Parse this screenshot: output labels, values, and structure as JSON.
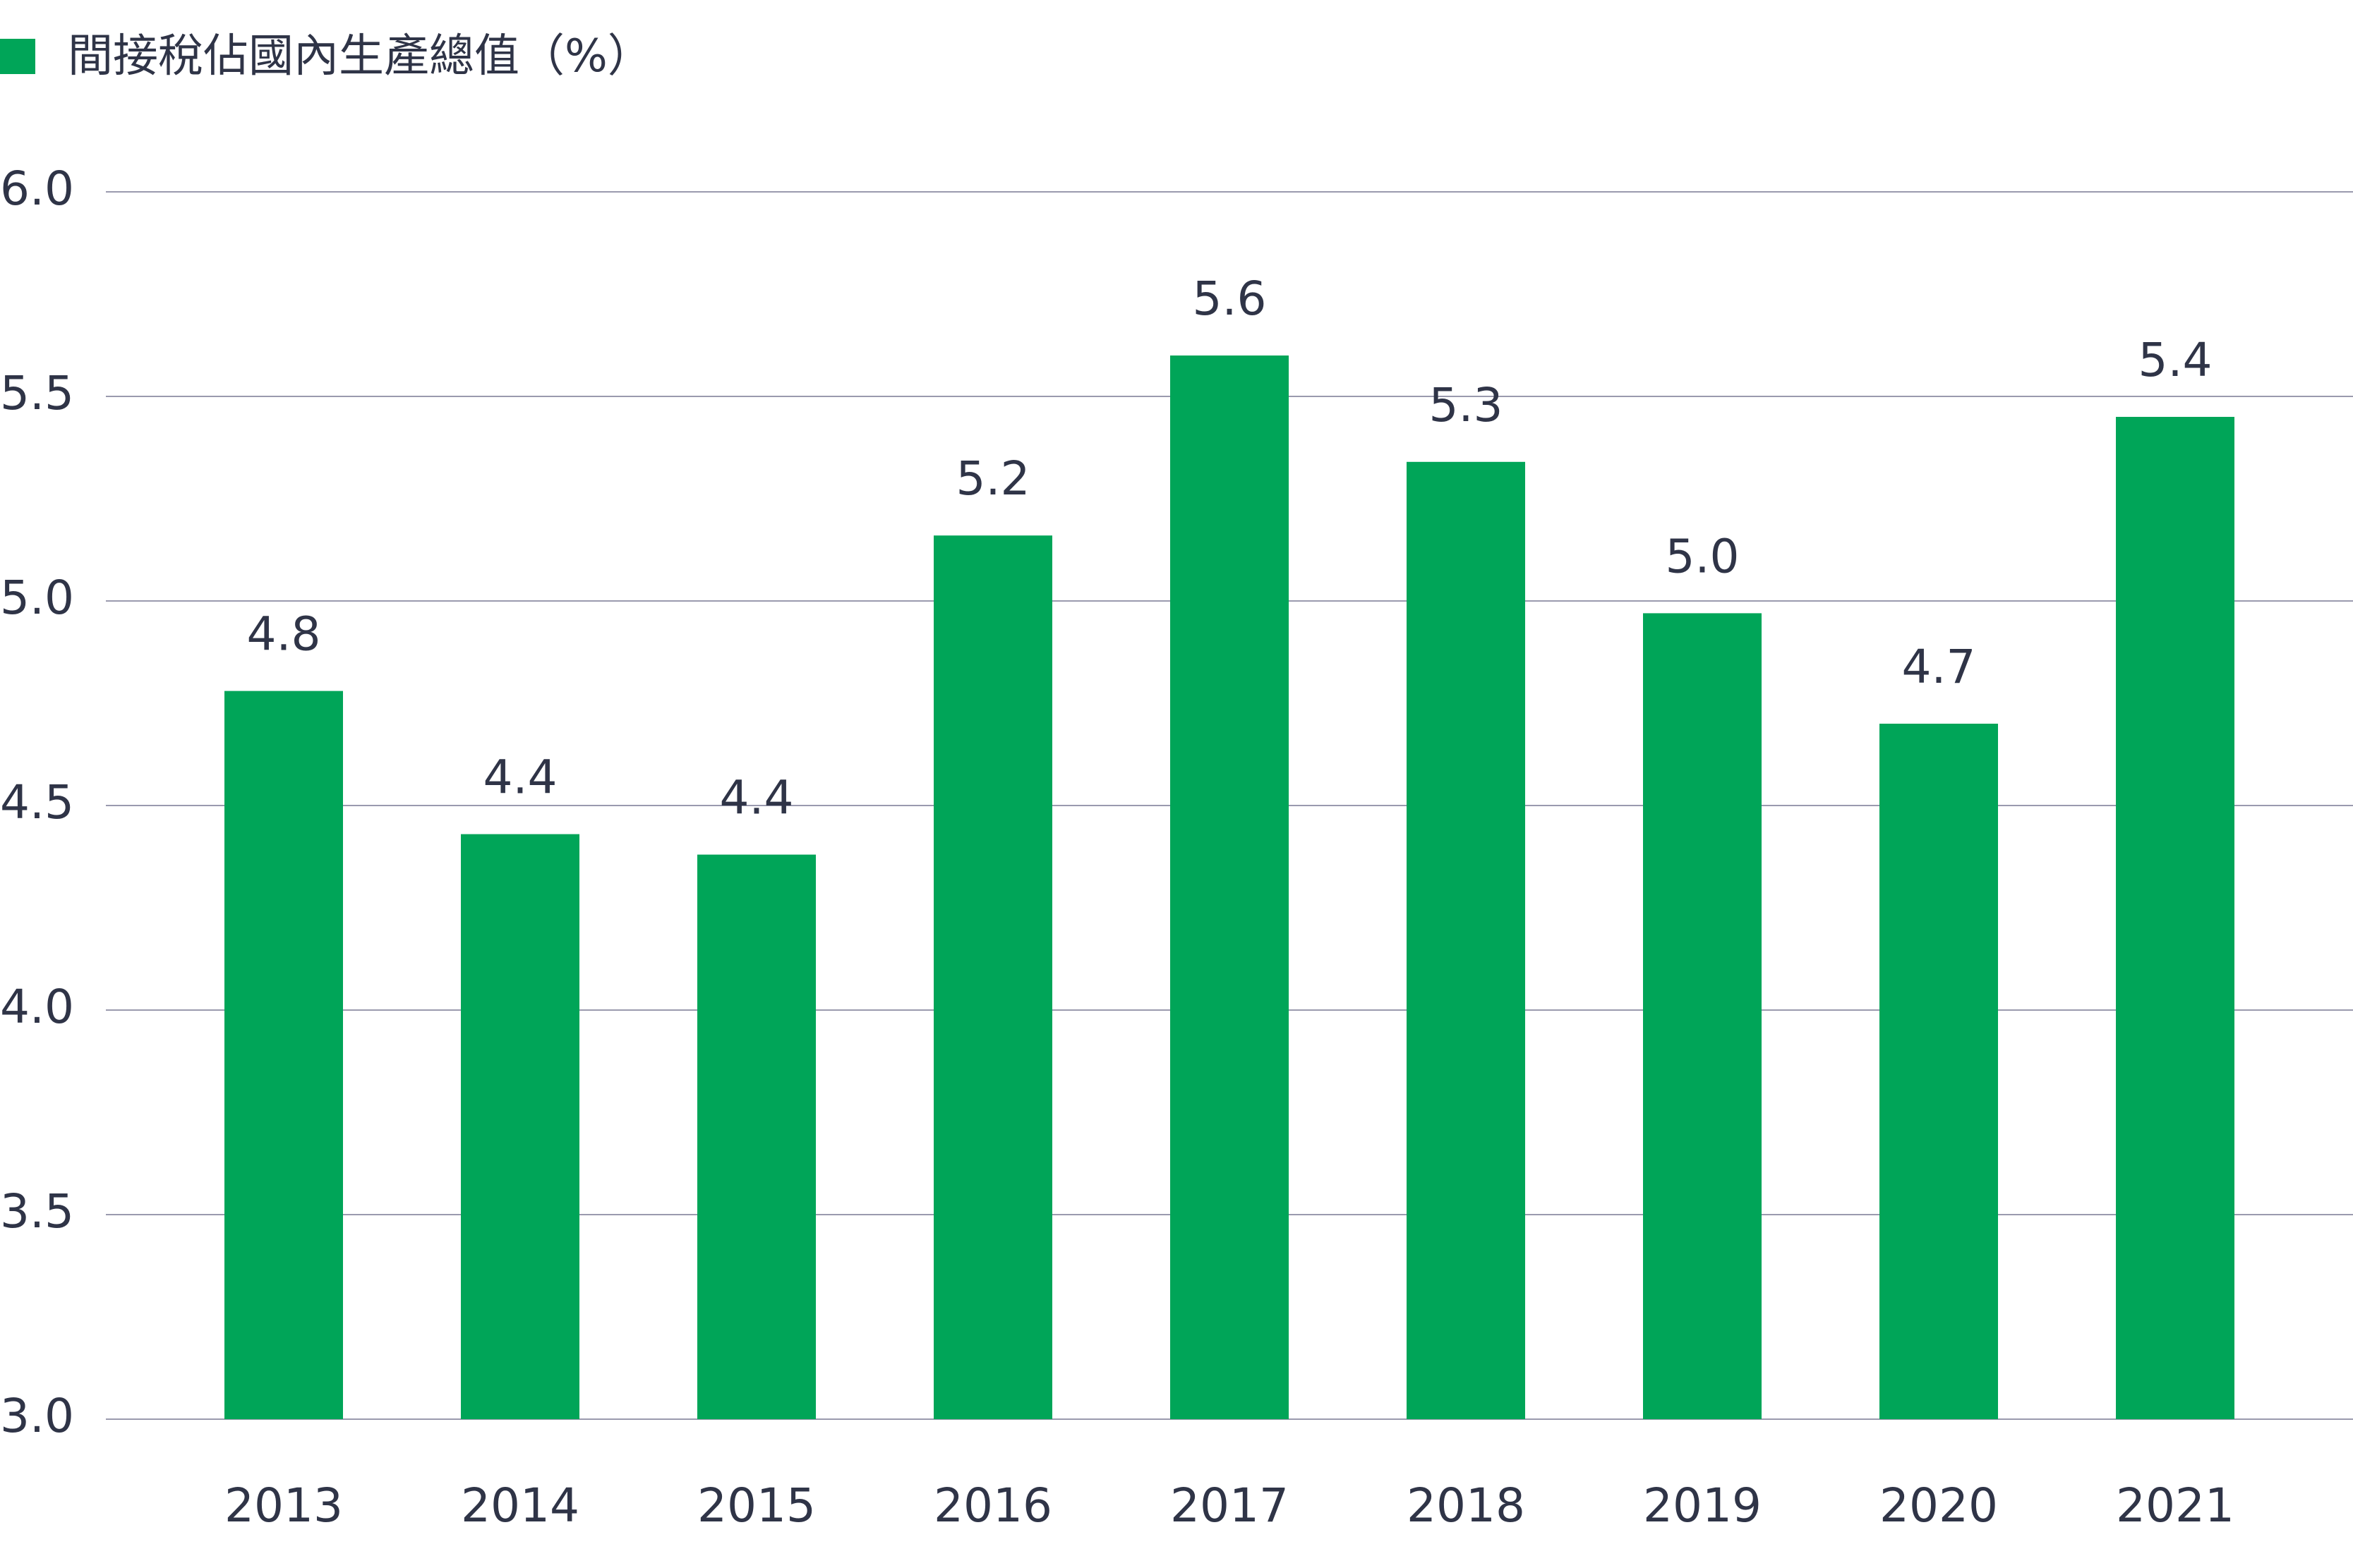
{
  "chart_data": {
    "type": "bar",
    "legend": [
      {
        "label": "間接稅佔國內生產總值（%）",
        "color": "#00a558"
      }
    ],
    "categories": [
      "2013",
      "2014",
      "2015",
      "2016",
      "2017",
      "2018",
      "2019",
      "2020",
      "2021"
    ],
    "values": [
      4.78,
      4.43,
      4.38,
      5.16,
      5.6,
      5.34,
      4.97,
      4.7,
      5.45
    ],
    "data_labels": [
      "4.8",
      "4.4",
      "4.4",
      "5.2",
      "5.6",
      "5.3",
      "5.0",
      "4.7",
      "5.4"
    ],
    "ylim": [
      3.0,
      6.0
    ],
    "yticks": [
      "3.0",
      "3.5",
      "4.0",
      "4.5",
      "5.0",
      "5.5",
      "6.0"
    ],
    "grid": true,
    "legend_position": "top-left",
    "colors": {
      "bar": "#00a558",
      "grid": "#9a9aae",
      "text": "#2f3447"
    }
  }
}
